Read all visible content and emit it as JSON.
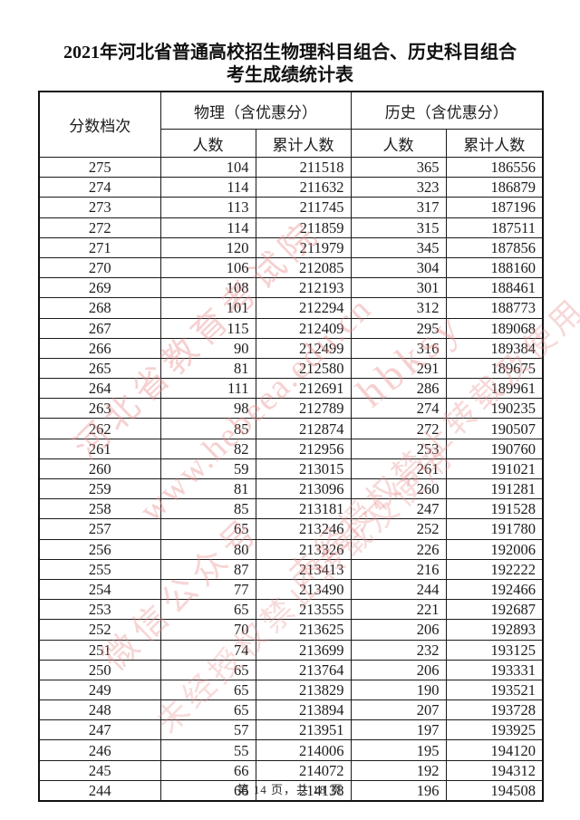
{
  "title": {
    "line1": "2021年河北省普通高校招生物理科目组合、历史科目组合",
    "line2": "考生成绩统计表"
  },
  "table": {
    "headers": {
      "score": "分数档次",
      "physics_group": "物理（含优惠分）",
      "history_group": "历史（含优惠分）",
      "count": "人数",
      "cumulative": "累计人数"
    },
    "rows": [
      {
        "score": "275",
        "p_count": "104",
        "p_cum": "211518",
        "h_count": "365",
        "h_cum": "186556"
      },
      {
        "score": "274",
        "p_count": "114",
        "p_cum": "211632",
        "h_count": "323",
        "h_cum": "186879"
      },
      {
        "score": "273",
        "p_count": "113",
        "p_cum": "211745",
        "h_count": "317",
        "h_cum": "187196"
      },
      {
        "score": "272",
        "p_count": "114",
        "p_cum": "211859",
        "h_count": "315",
        "h_cum": "187511"
      },
      {
        "score": "271",
        "p_count": "120",
        "p_cum": "211979",
        "h_count": "345",
        "h_cum": "187856"
      },
      {
        "score": "270",
        "p_count": "106",
        "p_cum": "212085",
        "h_count": "304",
        "h_cum": "188160"
      },
      {
        "score": "269",
        "p_count": "108",
        "p_cum": "212193",
        "h_count": "301",
        "h_cum": "188461"
      },
      {
        "score": "268",
        "p_count": "101",
        "p_cum": "212294",
        "h_count": "312",
        "h_cum": "188773"
      },
      {
        "score": "267",
        "p_count": "115",
        "p_cum": "212409",
        "h_count": "295",
        "h_cum": "189068"
      },
      {
        "score": "266",
        "p_count": "90",
        "p_cum": "212499",
        "h_count": "316",
        "h_cum": "189384"
      },
      {
        "score": "265",
        "p_count": "81",
        "p_cum": "212580",
        "h_count": "291",
        "h_cum": "189675"
      },
      {
        "score": "264",
        "p_count": "111",
        "p_cum": "212691",
        "h_count": "286",
        "h_cum": "189961"
      },
      {
        "score": "263",
        "p_count": "98",
        "p_cum": "212789",
        "h_count": "274",
        "h_cum": "190235"
      },
      {
        "score": "262",
        "p_count": "85",
        "p_cum": "212874",
        "h_count": "272",
        "h_cum": "190507"
      },
      {
        "score": "261",
        "p_count": "82",
        "p_cum": "212956",
        "h_count": "253",
        "h_cum": "190760"
      },
      {
        "score": "260",
        "p_count": "59",
        "p_cum": "213015",
        "h_count": "261",
        "h_cum": "191021"
      },
      {
        "score": "259",
        "p_count": "81",
        "p_cum": "213096",
        "h_count": "260",
        "h_cum": "191281"
      },
      {
        "score": "258",
        "p_count": "85",
        "p_cum": "213181",
        "h_count": "247",
        "h_cum": "191528"
      },
      {
        "score": "257",
        "p_count": "65",
        "p_cum": "213246",
        "h_count": "252",
        "h_cum": "191780"
      },
      {
        "score": "256",
        "p_count": "80",
        "p_cum": "213326",
        "h_count": "226",
        "h_cum": "192006"
      },
      {
        "score": "255",
        "p_count": "87",
        "p_cum": "213413",
        "h_count": "216",
        "h_cum": "192222"
      },
      {
        "score": "254",
        "p_count": "77",
        "p_cum": "213490",
        "h_count": "244",
        "h_cum": "192466"
      },
      {
        "score": "253",
        "p_count": "65",
        "p_cum": "213555",
        "h_count": "221",
        "h_cum": "192687"
      },
      {
        "score": "252",
        "p_count": "70",
        "p_cum": "213625",
        "h_count": "206",
        "h_cum": "192893"
      },
      {
        "score": "251",
        "p_count": "74",
        "p_cum": "213699",
        "h_count": "232",
        "h_cum": "193125"
      },
      {
        "score": "250",
        "p_count": "65",
        "p_cum": "213764",
        "h_count": "206",
        "h_cum": "193331"
      },
      {
        "score": "249",
        "p_count": "65",
        "p_cum": "213829",
        "h_count": "190",
        "h_cum": "193521"
      },
      {
        "score": "248",
        "p_count": "65",
        "p_cum": "213894",
        "h_count": "207",
        "h_cum": "193728"
      },
      {
        "score": "247",
        "p_count": "57",
        "p_cum": "213951",
        "h_count": "197",
        "h_cum": "193925"
      },
      {
        "score": "246",
        "p_count": "55",
        "p_cum": "214006",
        "h_count": "195",
        "h_cum": "194120"
      },
      {
        "score": "245",
        "p_count": "66",
        "p_cum": "214072",
        "h_count": "192",
        "h_cum": "194312"
      },
      {
        "score": "244",
        "p_count": "66",
        "p_cum": "214138",
        "h_count": "196",
        "h_cum": "194508"
      }
    ]
  },
  "footer": {
    "page_info": "第 14 页，共 18 页"
  },
  "watermark": {
    "color": "#e98c8c",
    "lines": [
      {
        "text": "河北省教育考试院"
      },
      {
        "text": "www.hebeea.edu.cn"
      },
      {
        "text": "hbksy"
      },
      {
        "text": "未经授权禁止转载及使用"
      },
      {
        "text": "微信公众号"
      },
      {
        "text": "未经授权禁止转载及使用"
      }
    ]
  }
}
